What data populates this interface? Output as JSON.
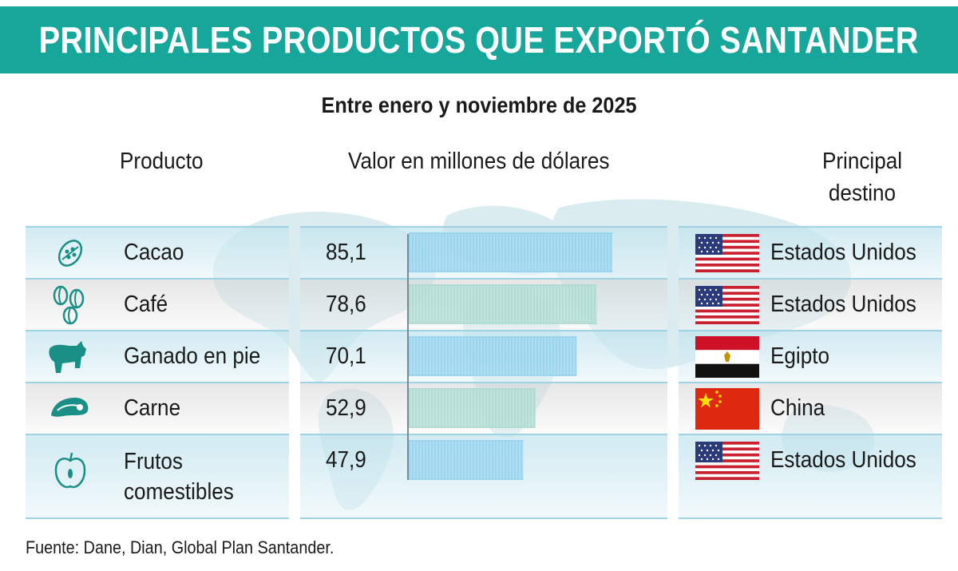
{
  "title": "PRINCIPALES PRODUCTOS QUE EXPORTÓ SANTANDER",
  "subtitle": "Entre enero y noviembre de  2025",
  "headers": {
    "product": "Producto",
    "value": "Valor en millones de dólares",
    "destination": "Principal destino"
  },
  "source": "Fuente: Dane, Dian, Global Plan Santander.",
  "colors": {
    "banner": "#16a79a",
    "bar": "#8fd0ec",
    "bar_alt": "#a8d8cf",
    "row_blue": "#c3e4ee",
    "row_gray": "#d7d7d7"
  },
  "chart_data": {
    "type": "bar",
    "orientation": "horizontal",
    "title": "PRINCIPALES PRODUCTOS QUE EXPORTÓ SANTANDER",
    "subtitle": "Entre enero y noviembre de  2025",
    "xlabel": "Valor en millones de dólares",
    "xlim": [
      0,
      100
    ],
    "grid": false,
    "categories": [
      "Cacao",
      "Café",
      "Ganado en pie",
      "Carne",
      "Frutos comestibles"
    ],
    "values": [
      85.1,
      78.6,
      70.1,
      52.9,
      47.9
    ],
    "value_labels": [
      "85,1",
      "78,6",
      "70,1",
      "52,9",
      "47,9"
    ],
    "rows": [
      {
        "product": "Cacao",
        "icon": "cacao-pod-icon",
        "value": 85.1,
        "label": "85,1",
        "destination": "Estados Unidos",
        "flag": "usa-flag-icon"
      },
      {
        "product": "Café",
        "icon": "coffee-beans-icon",
        "value": 78.6,
        "label": "78,6",
        "destination": "Estados Unidos",
        "flag": "usa-flag-icon"
      },
      {
        "product": "Ganado en pie",
        "icon": "cattle-icon",
        "value": 70.1,
        "label": "70,1",
        "destination": "Egipto",
        "flag": "egypt-flag-icon"
      },
      {
        "product": "Carne",
        "icon": "meat-icon",
        "value": 52.9,
        "label": "52,9",
        "destination": "China",
        "flag": "china-flag-icon"
      },
      {
        "product": "Frutos\ncomestibles",
        "icon": "apple-icon",
        "value": 47.9,
        "label": "47,9",
        "destination": "Estados Unidos",
        "flag": "usa-flag-icon"
      }
    ]
  }
}
